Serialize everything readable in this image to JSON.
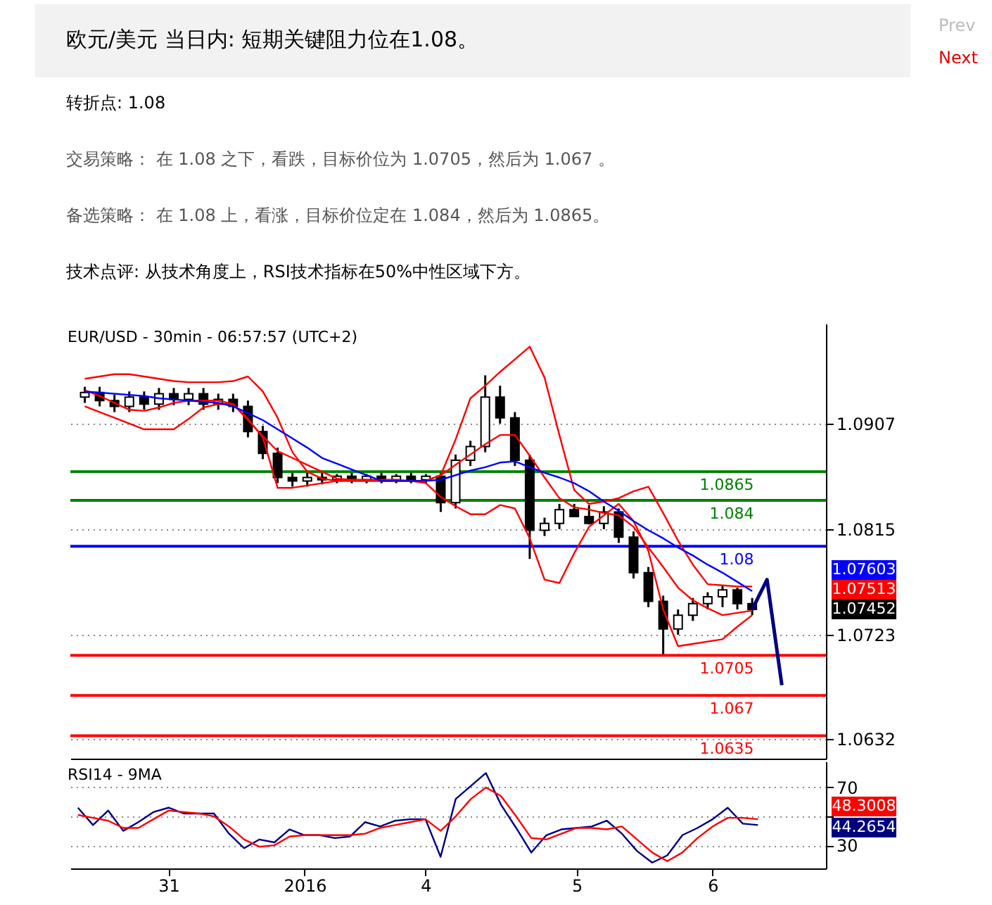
{
  "chart_data": [
    {
      "type": "candlestick",
      "title": "欧元/美元 当日内: 短期关键阻力位在1.08。",
      "subtitle": "EUR/USD - 30min - 06:57:57 (UTC+2)",
      "annotations": [
        "转折点: 1.08",
        "交易策略： 在 1.08 之下，看跌，目标价位为 1.0705，然后为 1.067 。",
        "备选策略： 在 1.08 上，看涨，目标价位定在 1.084，然后为 1.0865。",
        "技术点评: 从技术角度上，RSI技术指标在50%中性区域下方。",
        "Prev",
        "Next",
        "1.07603",
        "1.07513",
        "1.07452"
      ],
      "categories": [
        null,
        null,
        null,
        null,
        null,
        null,
        null,
        null,
        null,
        null,
        null,
        null,
        null,
        null,
        null,
        null,
        null,
        null,
        null,
        null,
        null,
        null,
        null,
        null,
        null,
        null,
        null,
        null,
        null,
        null,
        null,
        null,
        null,
        null,
        null,
        null,
        null,
        null,
        null,
        null,
        null,
        null,
        null,
        null,
        null,
        null,
        null,
        null,
        null,
        null
      ],
      "ohlc": [
        [
          1.093,
          1.0939,
          1.0925,
          1.0934
        ],
        [
          1.0934,
          1.0939,
          1.0922,
          1.0927
        ],
        [
          1.0927,
          1.0932,
          1.0917,
          1.0922
        ],
        [
          1.0922,
          1.0935,
          1.0917,
          1.093
        ],
        [
          1.093,
          1.0935,
          1.0919,
          1.0924
        ],
        [
          1.0924,
          1.0938,
          1.0919,
          1.0933
        ],
        [
          1.0933,
          1.0938,
          1.0923,
          1.0928
        ],
        [
          1.0928,
          1.0938,
          1.0923,
          1.0933
        ],
        [
          1.0933,
          1.0938,
          1.0919,
          1.0924
        ],
        [
          1.0924,
          1.0933,
          1.0919,
          1.0928
        ],
        [
          1.0928,
          1.0933,
          1.0917,
          1.0922
        ],
        [
          1.0922,
          1.0927,
          1.0895,
          1.09
        ],
        [
          1.09,
          1.0905,
          1.0876,
          1.0881
        ],
        [
          1.0881,
          1.0886,
          1.0855,
          1.086
        ],
        [
          1.086,
          1.0865,
          1.0852,
          1.0857
        ],
        [
          1.0857,
          1.0865,
          1.0852,
          1.086
        ],
        [
          1.086,
          1.0865,
          1.0854,
          1.0858
        ],
        [
          1.0858,
          1.0863,
          1.0855,
          1.0861
        ],
        [
          1.0861,
          1.0864,
          1.0855,
          1.0858
        ],
        [
          1.0858,
          1.0863,
          1.0855,
          1.0861
        ],
        [
          1.0861,
          1.0864,
          1.0855,
          1.0858
        ],
        [
          1.0858,
          1.0863,
          1.0855,
          1.0861
        ],
        [
          1.0861,
          1.0864,
          1.0855,
          1.0858
        ],
        [
          1.0858,
          1.0863,
          1.0855,
          1.0861
        ],
        [
          1.0861,
          1.0864,
          1.083,
          1.0838
        ],
        [
          1.0838,
          1.088,
          1.0833,
          1.0875
        ],
        [
          1.0875,
          1.0892,
          1.087,
          1.0887
        ],
        [
          1.0887,
          1.0949,
          1.0882,
          1.093
        ],
        [
          1.093,
          1.094,
          1.0907,
          1.0912
        ],
        [
          1.0912,
          1.0917,
          1.087,
          1.0875
        ],
        [
          1.0875,
          1.088,
          1.0789,
          1.0814
        ],
        [
          1.0814,
          1.0825,
          1.0809,
          1.082
        ],
        [
          1.082,
          1.0837,
          1.0815,
          1.0832
        ],
        [
          1.0832,
          1.0837,
          1.0826,
          1.0826
        ],
        [
          1.0826,
          1.0836,
          1.0819,
          1.082
        ],
        [
          1.082,
          1.0835,
          1.0815,
          1.083
        ],
        [
          1.083,
          1.0833,
          1.0803,
          1.0808
        ],
        [
          1.0808,
          1.0813,
          1.0772,
          1.0777
        ],
        [
          1.0777,
          1.0782,
          1.0747,
          1.0752
        ],
        [
          1.0752,
          1.0757,
          1.0705,
          1.0728
        ],
        [
          1.0728,
          1.0745,
          1.0723,
          1.074
        ],
        [
          1.074,
          1.0755,
          1.0735,
          1.075
        ],
        [
          1.075,
          1.076,
          1.0745,
          1.0756
        ],
        [
          1.0756,
          1.0766,
          1.0747,
          1.0762
        ],
        [
          1.0762,
          1.0764,
          1.0745,
          1.075
        ],
        [
          1.075,
          1.0755,
          1.074,
          1.0745
        ],
        null,
        null,
        null,
        null
      ],
      "color": "#000000",
      "series": [
        {
          "type": "line",
          "color": "#ff0000",
          "values": [
            1.0946,
            1.0948,
            1.095,
            1.095,
            1.0948,
            1.0946,
            1.0944,
            1.0943,
            1.0943,
            1.0943,
            1.0944,
            1.0948,
            1.0935,
            1.0912,
            1.0882,
            1.0865,
            1.0859,
            1.0857,
            1.0857,
            1.0857,
            1.0857,
            1.0857,
            1.0857,
            1.0857,
            1.0862,
            1.0893,
            1.0929,
            1.094,
            1.0952,
            1.0963,
            1.0974,
            1.0947,
            1.0897,
            1.0849,
            1.0837,
            1.0839,
            1.0842,
            1.0848,
            1.0852,
            1.0829,
            1.0805,
            1.0784,
            1.0767,
            1.0766,
            1.0765,
            1.0765,
            null,
            null,
            null,
            null
          ]
        },
        {
          "type": "line",
          "color": "#ff0000",
          "values": [
            1.0936,
            1.0931,
            1.0925,
            1.0919,
            1.0918,
            1.0921,
            1.0925,
            1.0927,
            1.0927,
            1.0927,
            1.0924,
            1.091,
            1.0896,
            1.0883,
            1.0877,
            1.0871,
            1.0865,
            1.0859,
            1.0858,
            1.0858,
            1.0858,
            1.0858,
            1.0857,
            1.0857,
            1.0862,
            1.0871,
            1.088,
            1.0889,
            1.0897,
            1.0897,
            1.0879,
            1.086,
            1.0842,
            1.0834,
            1.0832,
            1.0829,
            1.0827,
            1.0817,
            1.0799,
            1.0782,
            1.0764,
            1.0753,
            1.0746,
            1.074,
            1.0742,
            1.0744,
            null,
            null,
            null,
            null
          ]
        },
        {
          "type": "line",
          "color": "#ff0000",
          "values": [
            1.0922,
            1.0917,
            1.0912,
            1.0907,
            1.0902,
            1.0902,
            1.0902,
            1.0911,
            1.0921,
            1.0924,
            1.0924,
            1.0911,
            1.0895,
            1.0851,
            1.0851,
            1.0853,
            1.0855,
            1.0857,
            1.0857,
            1.0857,
            1.0857,
            1.0857,
            1.0857,
            1.0855,
            1.0843,
            1.0835,
            1.0828,
            1.0828,
            1.0836,
            1.0833,
            1.0807,
            1.0771,
            1.0768,
            1.0794,
            1.0817,
            1.0827,
            1.0837,
            1.0822,
            1.0796,
            1.0745,
            1.0713,
            1.0715,
            1.0717,
            1.0719,
            1.073,
            1.074,
            null,
            null,
            null,
            null
          ]
        },
        {
          "type": "line",
          "color": "#0000ff",
          "values": [
            1.0935,
            1.0934,
            1.0933,
            1.0932,
            1.0931,
            1.0929,
            1.0928,
            1.0927,
            1.0926,
            1.0925,
            1.0922,
            1.0916,
            1.091,
            1.0902,
            1.0894,
            1.0886,
            1.0877,
            1.0872,
            1.0867,
            1.0862,
            1.0857,
            1.0857,
            1.0857,
            1.0857,
            1.0858,
            1.0862,
            1.0866,
            1.0869,
            1.0873,
            1.0874,
            1.0869,
            1.0864,
            1.086,
            1.0855,
            1.0848,
            1.0839,
            1.0831,
            1.0822,
            1.0814,
            1.0807,
            1.0799,
            1.0792,
            1.0784,
            1.0777,
            1.0769,
            1.0761,
            null,
            null,
            null,
            null
          ]
        },
        {
          "type": "line",
          "color": "#000080",
          "values": [
            null,
            null,
            null,
            null,
            null,
            null,
            null,
            null,
            null,
            null,
            null,
            null,
            null,
            null,
            null,
            null,
            null,
            null,
            null,
            null,
            null,
            null,
            null,
            null,
            null,
            null,
            null,
            null,
            null,
            null,
            null,
            null,
            null,
            null,
            null,
            null,
            null,
            null,
            null,
            null,
            null,
            null,
            null,
            null,
            null,
            1.0745,
            1.0771,
            1.0679,
            null,
            null
          ]
        }
      ],
      "ref_lines": [
        {
          "axis": "y",
          "value": 1.0865,
          "label": "1.0865",
          "color": "#008000"
        },
        {
          "axis": "y",
          "value": 1.084,
          "label": "1.084",
          "color": "#008000"
        },
        {
          "axis": "y",
          "value": 1.08,
          "label": "1.08",
          "color": "#0000ff"
        },
        {
          "axis": "y",
          "value": 1.0705,
          "label": "1.0705",
          "color": "#ff0000"
        },
        {
          "axis": "y",
          "value": 1.067,
          "label": "1.067",
          "color": "#ff0000"
        },
        {
          "axis": "y",
          "value": 1.0635,
          "label": "1.0635",
          "color": "#ff0000"
        }
      ],
      "ylim": [
        1.0615,
        1.0994
      ],
      "yticks": [
        1.0907,
        1.0815,
        1.0723,
        1.0632
      ],
      "grid": "y",
      "tick_labels": "y"
    },
    {
      "type": "line",
      "title": "RSI14 - 9MA",
      "categories": [
        null,
        null,
        null,
        null,
        null,
        null,
        "31",
        null,
        null,
        null,
        null,
        null,
        null,
        null,
        null,
        "2016",
        null,
        null,
        null,
        null,
        null,
        null,
        null,
        "4",
        null,
        null,
        null,
        null,
        null,
        null,
        null,
        null,
        null,
        "5",
        null,
        null,
        null,
        null,
        null,
        null,
        null,
        null,
        "6",
        null,
        null,
        null,
        null,
        null,
        null,
        null
      ],
      "series": [
        {
          "color": "#000080",
          "values": [
            56,
            44,
            54,
            40,
            46,
            53,
            56,
            52,
            52,
            52,
            38,
            28,
            34,
            32,
            41,
            37,
            37,
            35,
            36,
            46,
            43,
            47,
            48,
            48,
            22,
            62,
            71,
            80,
            58,
            42,
            25,
            37,
            41,
            42,
            43,
            47,
            38,
            26,
            18,
            23,
            37,
            42,
            48,
            56,
            45,
            44,
            null,
            null,
            null,
            null
          ]
        },
        {
          "color": "#ff0000",
          "values": [
            51,
            49,
            47,
            42,
            42,
            48,
            54,
            53,
            52,
            50,
            43,
            34,
            29,
            30,
            36,
            37,
            37,
            37,
            37,
            38,
            42,
            44,
            46,
            48,
            40,
            50,
            62,
            70,
            64,
            50,
            35,
            34,
            38,
            42,
            42,
            41,
            43,
            34,
            25,
            19,
            25,
            35,
            43,
            49,
            49,
            48,
            null,
            null,
            null,
            null
          ]
        }
      ],
      "annotations": [
        "48.3008",
        "44.2654"
      ],
      "ylim": [
        14,
        88
      ],
      "yticks": [
        70,
        {
          "value": 50,
          "label": null
        },
        30
      ],
      "grid": "y"
    }
  ]
}
